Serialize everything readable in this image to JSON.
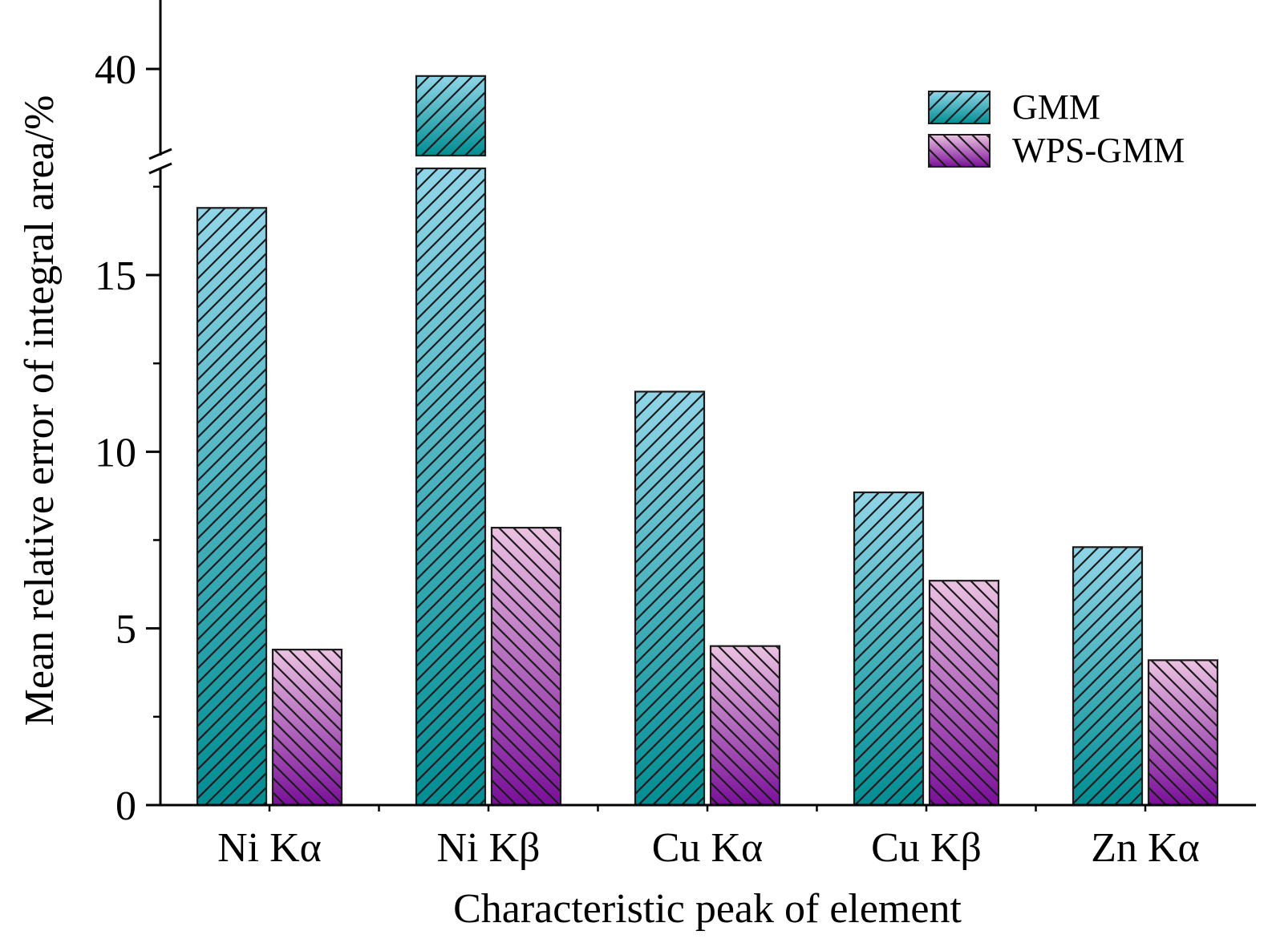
{
  "chart_data": {
    "type": "bar",
    "categories": [
      "Ni Kα",
      "Ni Kβ",
      "Cu Kα",
      "Cu Kβ",
      "Zn Kα"
    ],
    "series": [
      {
        "name": "GMM",
        "values": [
          16.9,
          39.6,
          11.7,
          8.85,
          7.3
        ],
        "color_top": "#90d5e8",
        "color_bottom": "#008e92"
      },
      {
        "name": "WPS-GMM",
        "values": [
          4.4,
          7.85,
          4.5,
          6.35,
          4.1
        ],
        "color_top": "#ecc3e2",
        "color_bottom": "#7a0f9a"
      }
    ],
    "xlabel": "Characteristic peak of element",
    "ylabel": "Mean relative error of  integral area/%",
    "y_ticks": [
      "0",
      "5",
      "10",
      "15",
      "40"
    ],
    "y_tick_values": [
      0,
      5,
      10,
      15,
      40
    ],
    "axis_break": {
      "lower_range": [
        0,
        18
      ],
      "upper_range": [
        38,
        42
      ]
    },
    "legend_position": "top-right",
    "grid": false
  }
}
